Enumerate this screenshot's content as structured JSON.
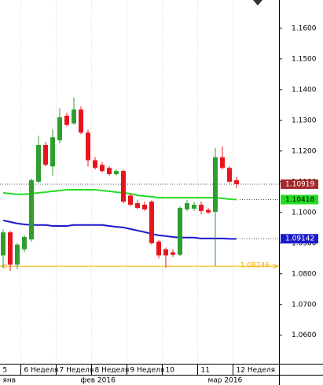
{
  "chart_data": {
    "type": "candlestick",
    "categories": [
      null,
      null,
      null,
      null,
      null,
      null,
      null,
      null,
      null,
      null,
      null,
      null,
      null,
      null,
      null,
      null,
      null,
      null,
      null,
      null,
      null,
      null,
      null,
      null,
      null,
      null,
      null,
      null,
      null,
      null,
      null,
      null,
      null,
      null
    ],
    "open": [
      1.086,
      1.0935,
      1.083,
      1.088,
      1.0912,
      1.11,
      1.122,
      1.115,
      1.1235,
      1.1315,
      1.129,
      1.1335,
      1.126,
      1.117,
      1.1155,
      1.1145,
      1.1125,
      1.1135,
      1.1055,
      1.103,
      1.1025,
      1.1035,
      1.0905,
      1.088,
      1.087,
      1.0862,
      1.101,
      1.1012,
      1.1025,
      1.1008,
      1.1002,
      1.118,
      1.1145,
      1.1105
    ],
    "high": [
      1.0945,
      1.094,
      1.09,
      1.0925,
      1.111,
      1.125,
      1.123,
      1.127,
      1.134,
      1.1325,
      1.1375,
      1.1345,
      1.127,
      1.118,
      1.1165,
      1.115,
      1.114,
      1.114,
      1.106,
      1.104,
      1.1035,
      1.104,
      1.091,
      1.0885,
      1.088,
      1.102,
      1.104,
      1.1035,
      1.1035,
      1.1015,
      1.121,
      1.1215,
      1.115,
      1.1115
    ],
    "low": [
      1.082,
      1.081,
      1.0815,
      1.087,
      1.0905,
      1.1095,
      1.115,
      1.112,
      1.1225,
      1.128,
      1.1285,
      1.1255,
      1.115,
      1.114,
      1.113,
      1.112,
      1.112,
      1.103,
      1.102,
      1.101,
      1.1005,
      1.0895,
      1.085,
      1.082,
      1.0855,
      1.0858,
      1.1005,
      1.1005,
      1.0995,
      1.0995,
      1.0825,
      1.114,
      1.1095,
      1.108
    ],
    "close": [
      1.0935,
      1.083,
      1.0895,
      1.092,
      1.1105,
      1.122,
      1.1155,
      1.1245,
      1.131,
      1.1285,
      1.1335,
      1.126,
      1.117,
      1.1145,
      1.1135,
      1.1125,
      1.1135,
      1.1035,
      1.1025,
      1.1015,
      1.101,
      1.09,
      1.086,
      1.086,
      1.0862,
      1.1015,
      1.103,
      1.1025,
      1.1005,
      1.1,
      1.118,
      1.1145,
      1.11,
      1.1092
    ],
    "up_color": "#2e9e2e",
    "down_color": "#e8141c",
    "series": [
      {
        "color": "#22dd22",
        "values": [
          1.1064,
          1.1061,
          1.1059,
          1.1059,
          1.1061,
          1.1064,
          1.1066,
          1.1069,
          1.1071,
          1.1074,
          1.1074,
          1.1074,
          1.1074,
          1.1074,
          1.1071,
          1.1069,
          1.1066,
          1.1064,
          1.1061,
          1.1056,
          1.1053,
          1.1051,
          1.1048,
          1.1048,
          1.1048,
          1.1048,
          1.1048,
          1.1048,
          1.1048,
          1.1048,
          1.1048,
          1.1046,
          1.1043,
          1.1042
        ]
      },
      {
        "color": "#1a1acc",
        "values": [
          1.0974,
          1.0969,
          1.0964,
          1.0961,
          1.0959,
          1.0959,
          1.0959,
          1.0956,
          1.0956,
          1.0956,
          1.0959,
          1.0959,
          1.0959,
          1.0959,
          1.0959,
          1.0956,
          1.0953,
          1.0951,
          1.0946,
          1.0941,
          1.0936,
          1.093,
          1.0925,
          1.0923,
          1.092,
          1.0918,
          1.0918,
          1.0918,
          1.0915,
          1.0915,
          1.0915,
          1.0915,
          1.0914,
          1.0914
        ]
      }
    ],
    "markers": [
      {
        "value": 1.10919,
        "color": "#a52a2a",
        "style": "box",
        "line": "full"
      },
      {
        "value": 1.10418,
        "color": "#22dd22",
        "style": "box",
        "line": "tail"
      },
      {
        "value": 1.09142,
        "color": "#1a1acc",
        "style": "box",
        "line": "tail"
      },
      {
        "value": 1.08246,
        "color": "#f5b000",
        "style": "level",
        "line": "full"
      }
    ],
    "ylim": [
      1.0507,
      1.1692
    ],
    "yticks": [
      {
        "value": 1.06,
        "label": "1.0600"
      },
      {
        "value": 1.07,
        "label": "1.0700"
      },
      {
        "value": 1.08,
        "label": "1.0800"
      },
      {
        "value": 1.09,
        "label": "1.0900"
      },
      {
        "value": 1.1,
        "label": "1.1000"
      },
      {
        "value": 1.11,
        "label": "1.1100"
      },
      {
        "value": 1.12,
        "label": "1.1200"
      },
      {
        "value": 1.13,
        "label": "1.1300"
      },
      {
        "value": 1.14,
        "label": "1.1400"
      },
      {
        "value": 1.15,
        "label": "1.1500"
      },
      {
        "value": 1.16,
        "label": "1.1600"
      }
    ],
    "xticks": [
      {
        "value": 0,
        "label": "5"
      },
      {
        "value": 3,
        "label": "6 Неделя"
      },
      {
        "value": 8,
        "label": "7 Неделя"
      },
      {
        "value": 13,
        "label": "8 Неделя"
      },
      {
        "value": 18,
        "label": "9 Неделя"
      },
      {
        "value": 23,
        "label": "10"
      },
      {
        "value": 28,
        "label": "11"
      },
      {
        "value": 33,
        "label": "12 Неделя"
      }
    ],
    "month_ticks": [
      {
        "value": 0,
        "label": "янв"
      },
      {
        "value": 11,
        "label": "фев 2016"
      },
      {
        "value": 29,
        "label": "мар 2016"
      }
    ],
    "grid": true
  }
}
